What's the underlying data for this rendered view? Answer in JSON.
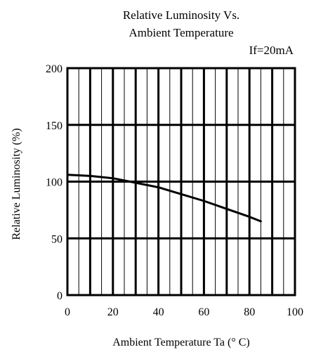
{
  "chart_data": {
    "type": "line",
    "title": "Relative Luminosity Vs.",
    "subtitle": "Ambient Temperature",
    "condition": "If=20mA",
    "xlabel": "Ambient  Temperature  Ta  (° C)",
    "ylabel": "Relative  Luminosity  (%)",
    "xlim": [
      0,
      100
    ],
    "ylim": [
      0,
      200
    ],
    "xticks": [
      0,
      20,
      40,
      60,
      80,
      100
    ],
    "yticks": [
      0,
      50,
      100,
      150,
      200
    ],
    "grid": true,
    "series": [
      {
        "x": [
          0,
          10,
          20,
          30,
          40,
          50,
          60,
          70,
          80,
          85
        ],
        "y": [
          106,
          105,
          103,
          99,
          95,
          89,
          83,
          76,
          69,
          65
        ]
      }
    ]
  }
}
